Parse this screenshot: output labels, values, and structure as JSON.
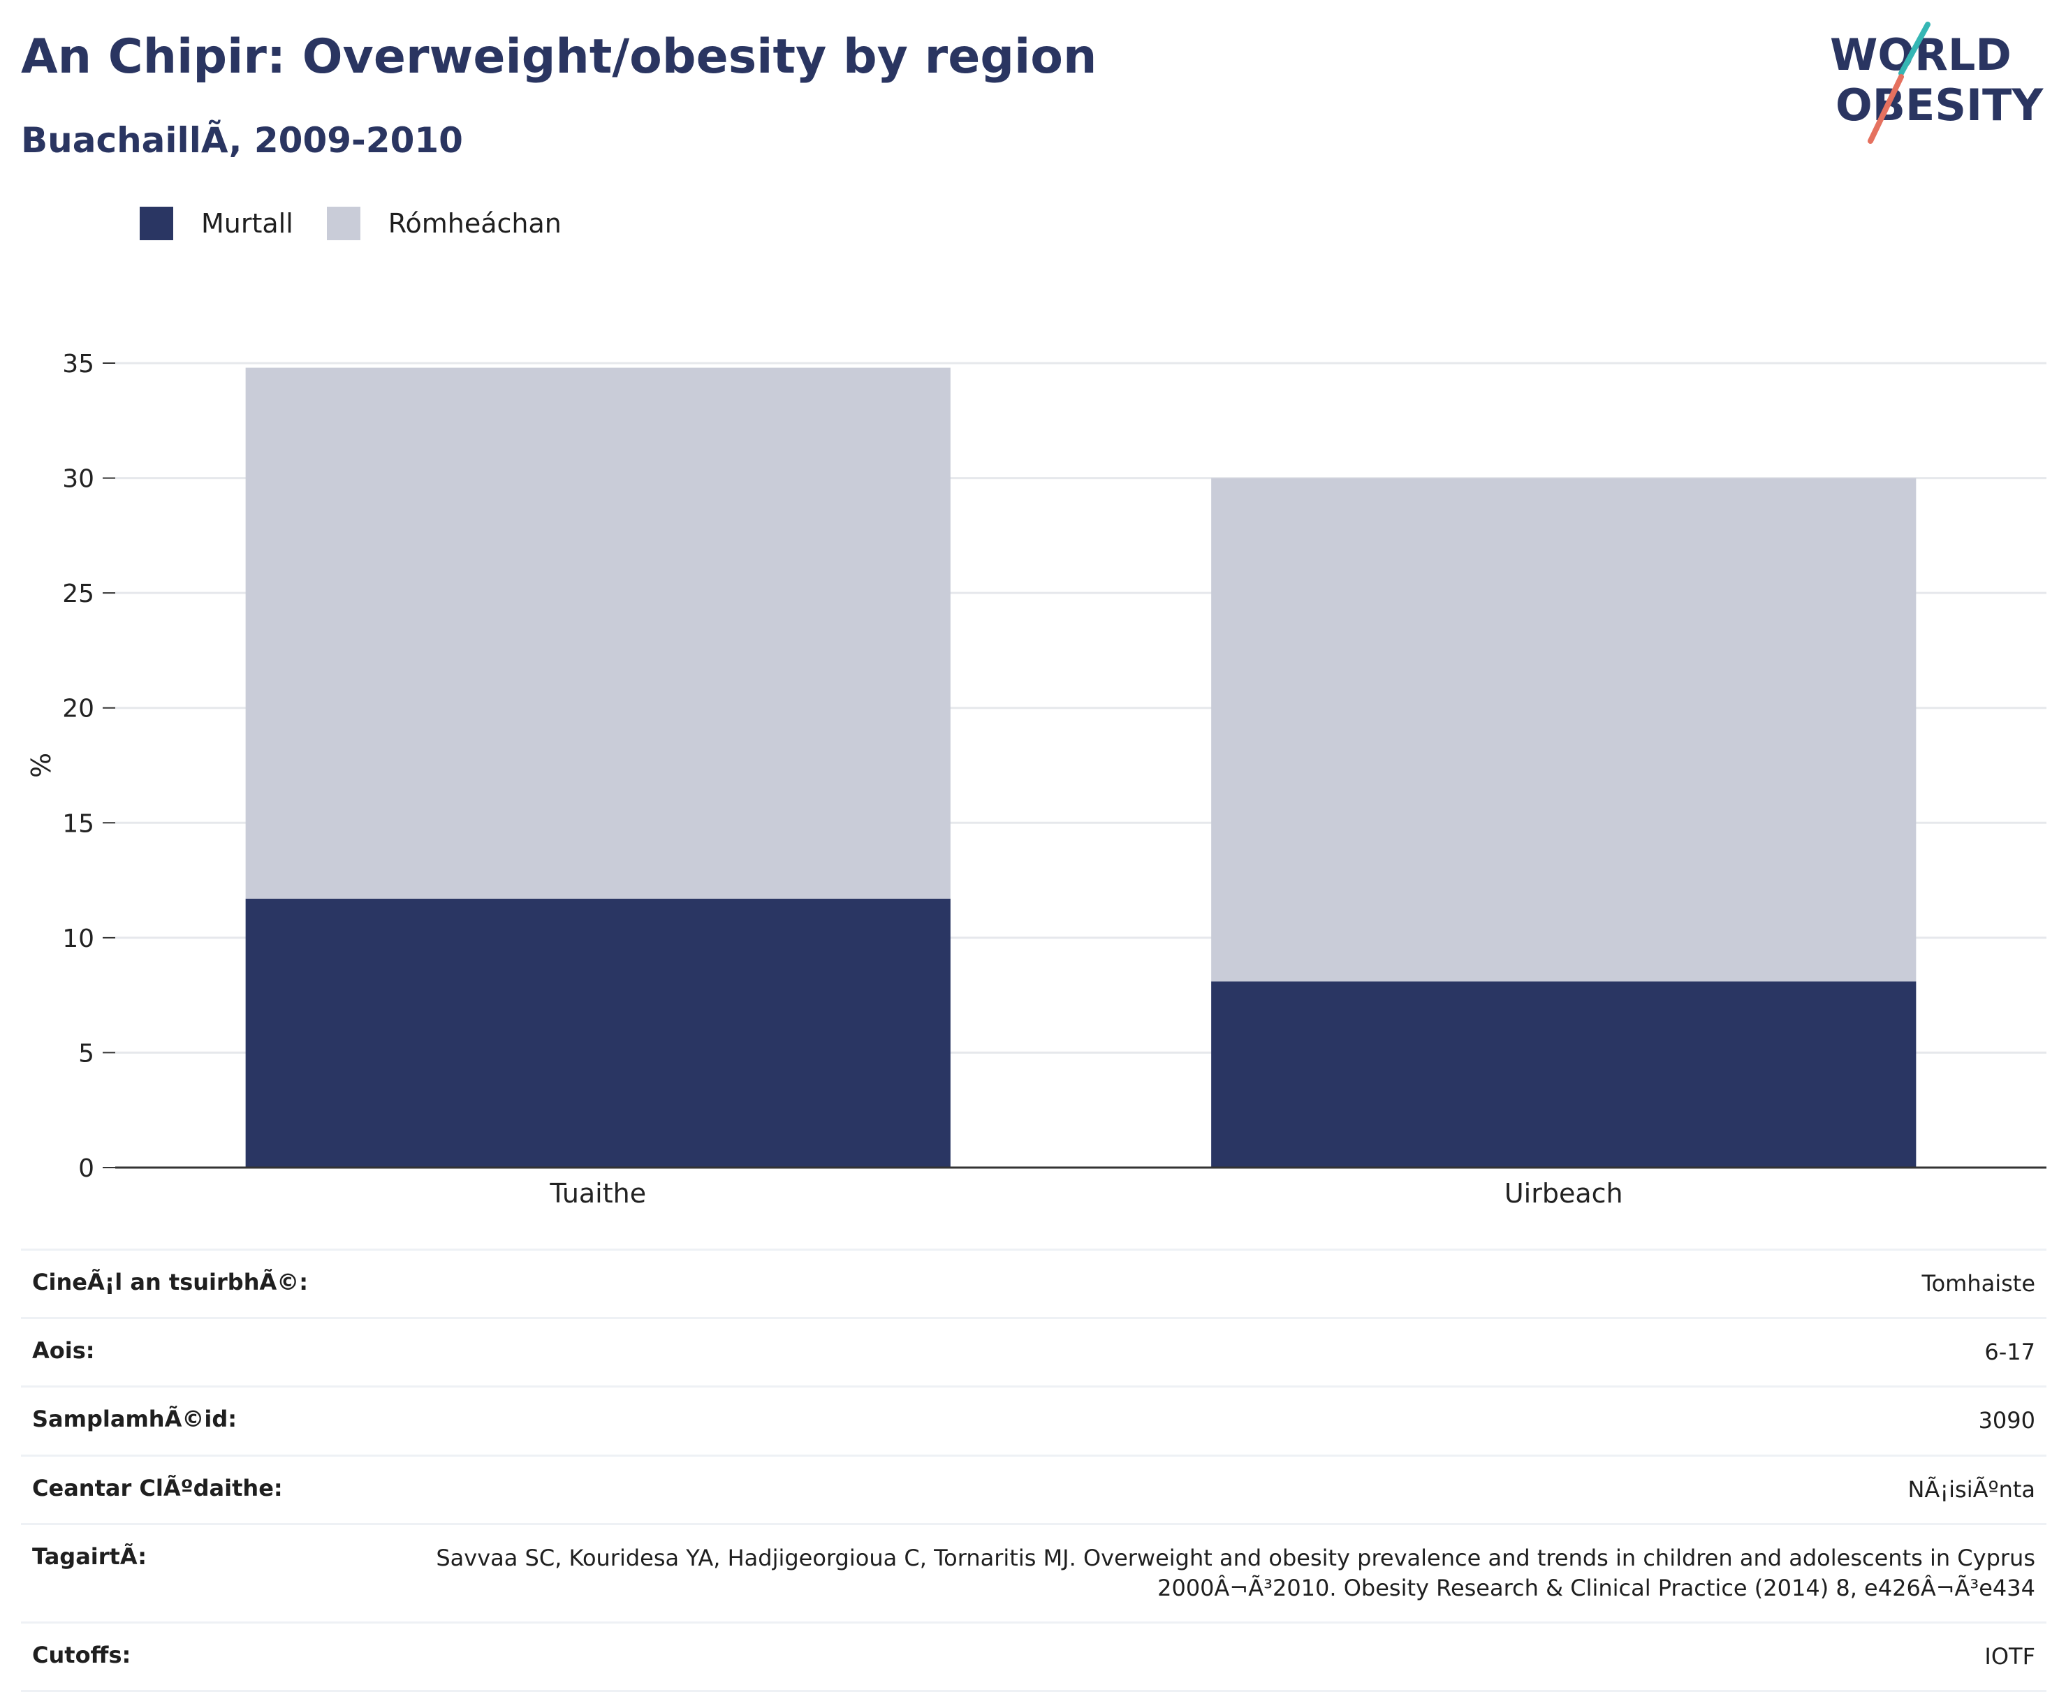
{
  "header": {
    "title": "An Chipir: Overweight/obesity by region",
    "subtitle": "BuachaillÃ, 2009-2010"
  },
  "logo": {
    "line1": "WORLD",
    "line2": "OBESITY"
  },
  "colors": {
    "murtall": "#2a3663",
    "romheachan": "#c9ccd8",
    "title": "#2a3561",
    "logo_teal": "#35b6b4",
    "logo_coral": "#e5715f"
  },
  "chart_data": {
    "type": "bar",
    "stacked": true,
    "categories": [
      "Tuaithe",
      "Uirbeach"
    ],
    "series": [
      {
        "name": "Murtall",
        "values": [
          11.7,
          8.1
        ]
      },
      {
        "name": "Rómheáchan",
        "values": [
          23.1,
          21.9
        ]
      }
    ],
    "ylabel": "%",
    "xlabel": "",
    "ylim": [
      0,
      35
    ],
    "yticks": [
      0,
      5,
      10,
      15,
      20,
      25,
      30,
      35
    ],
    "grid": true,
    "legend": "top-left"
  },
  "info": [
    {
      "label": "CineÃ¡l an tsuirbhÃ©:",
      "value": "Tomhaiste"
    },
    {
      "label": "Aois:",
      "value": "6-17"
    },
    {
      "label": "SamplamhÃ©id:",
      "value": "3090"
    },
    {
      "label": "Ceantar ClÃºdaithe:",
      "value": "NÃ¡isiÃºnta"
    },
    {
      "label": "TagairtÃ:",
      "value": "Savvaa SC, Kouridesa YA, Hadjigeorgioua C, Tornaritis MJ. Overweight and obesity prevalence and trends in children and adolescents in Cyprus 2000Â¬Ã³2010. Obesity Research & Clinical Practice (2014) 8, e426Â¬Ã³e434"
    },
    {
      "label": "Cutoffs:",
      "value": "IOTF"
    }
  ]
}
